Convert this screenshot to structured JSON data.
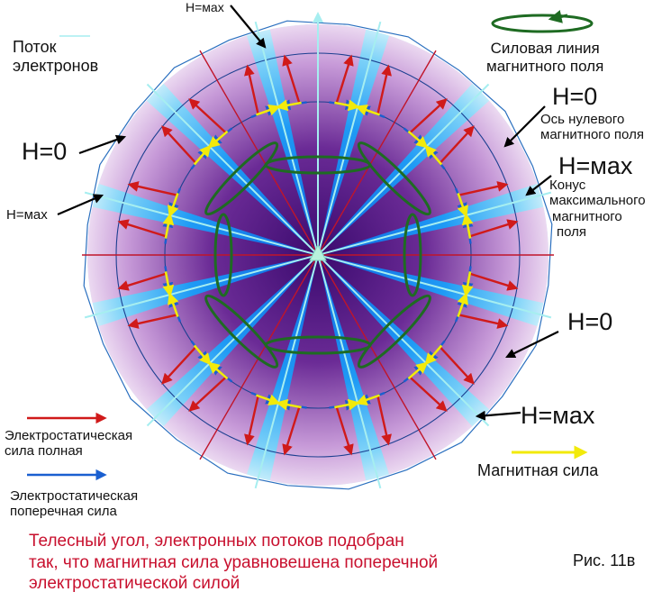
{
  "labels": {
    "potok_line1": "Поток",
    "potok_line2": "электронов",
    "h_max_top": "H=мах",
    "h_zero_left": "H=0",
    "h_max_left": "H=мах",
    "silovaya_line1": "Силовая линия",
    "silovaya_line2": "магнитного поля",
    "h_zero_right_top": "H=0",
    "os_line1": "Ось нулевого",
    "os_line2": "магнитного поля",
    "h_max_right": "H=мах",
    "konus_line1": "Конус",
    "konus_line2": "максимального",
    "konus_line3": "магнитного",
    "konus_line4": "поля",
    "h_zero_right_bottom": "H=0",
    "h_max_bottom_right": "H=мах",
    "es_full_line1": "Электростатическая",
    "es_full_line2": "сила полная",
    "es_trans_line1": "Электростатическая",
    "es_trans_line2": "поперечная сила",
    "magnetic_force": "Магнитная сила",
    "figure_number": "Рис. 11в"
  },
  "caption": {
    "line1": "Телесный угол, электронных потоков подобран",
    "line2": "так, что магнитная сила уравновешена поперечной",
    "line3": "электростатической силой"
  },
  "colors": {
    "electrostatic_full": "#d01a1a",
    "electrostatic_transverse": "#1a5fd0",
    "magnetic_force": "#f2ea0a",
    "field_line": "#1e6b22",
    "caption": "#c8102e",
    "beam_blue": "#1a8ff0",
    "cone_purple": "#5a1c8a"
  }
}
